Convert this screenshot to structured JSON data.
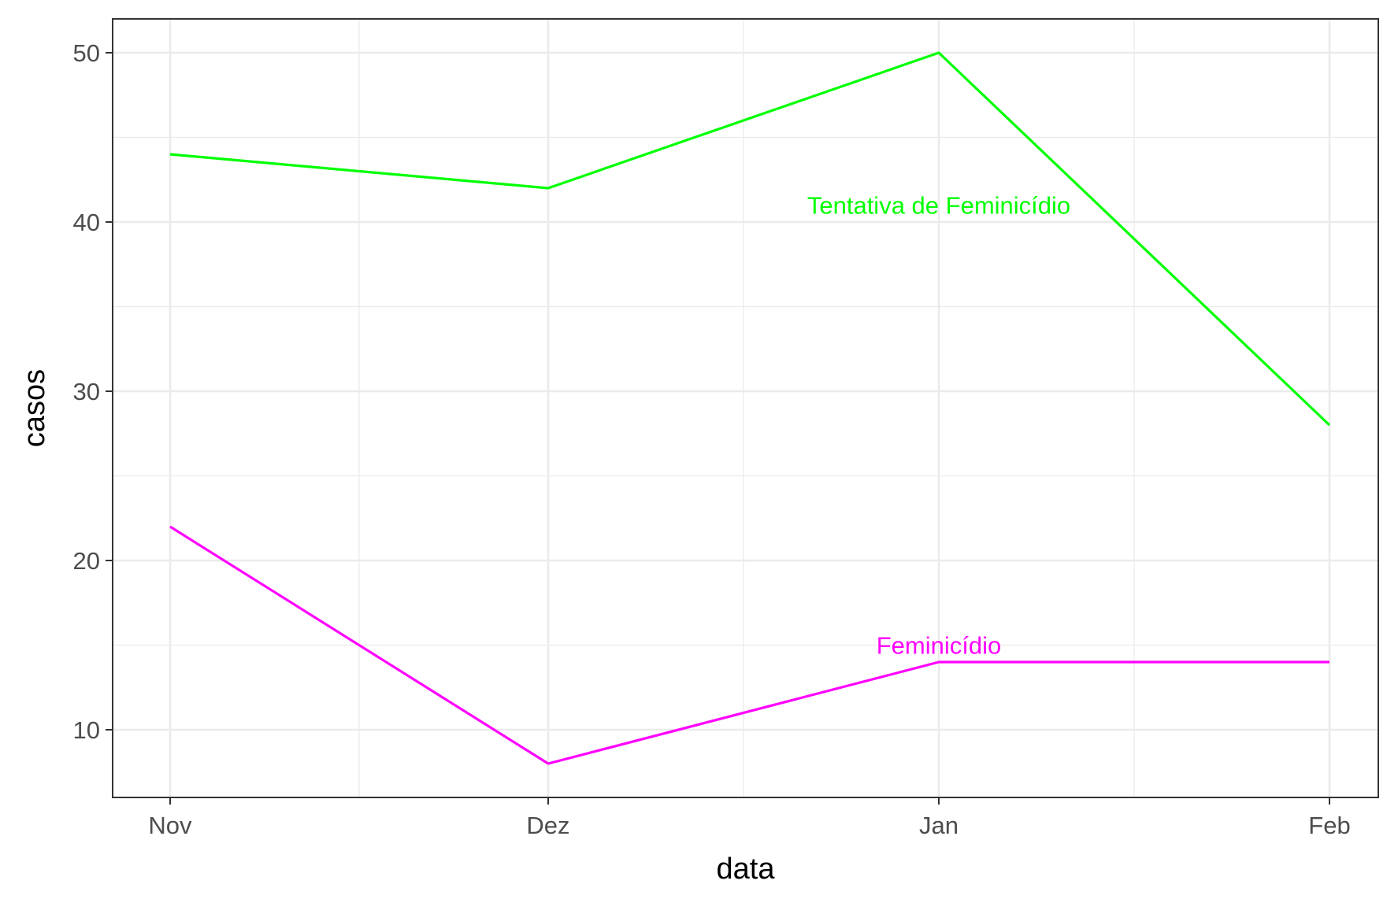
{
  "chart_data": {
    "type": "line",
    "title": "",
    "xlabel": "data",
    "ylabel": "casos",
    "categories": [
      "Nov",
      "Dez",
      "Jan",
      "Feb"
    ],
    "ylim": [
      6,
      52
    ],
    "yticks": [
      10,
      20,
      30,
      40,
      50
    ],
    "grid": true,
    "legend": "none (direct labels)",
    "series": [
      {
        "name": "Tentativa de Feminicídio",
        "color": "#00FF00",
        "values": [
          44,
          42,
          50,
          28
        ],
        "label_near": "Jan",
        "label_value": 41
      },
      {
        "name": "Feminicídio",
        "color": "#FF00FF",
        "values": [
          22,
          8,
          14,
          14
        ],
        "label_near": "Jan",
        "label_value": 15
      }
    ]
  }
}
